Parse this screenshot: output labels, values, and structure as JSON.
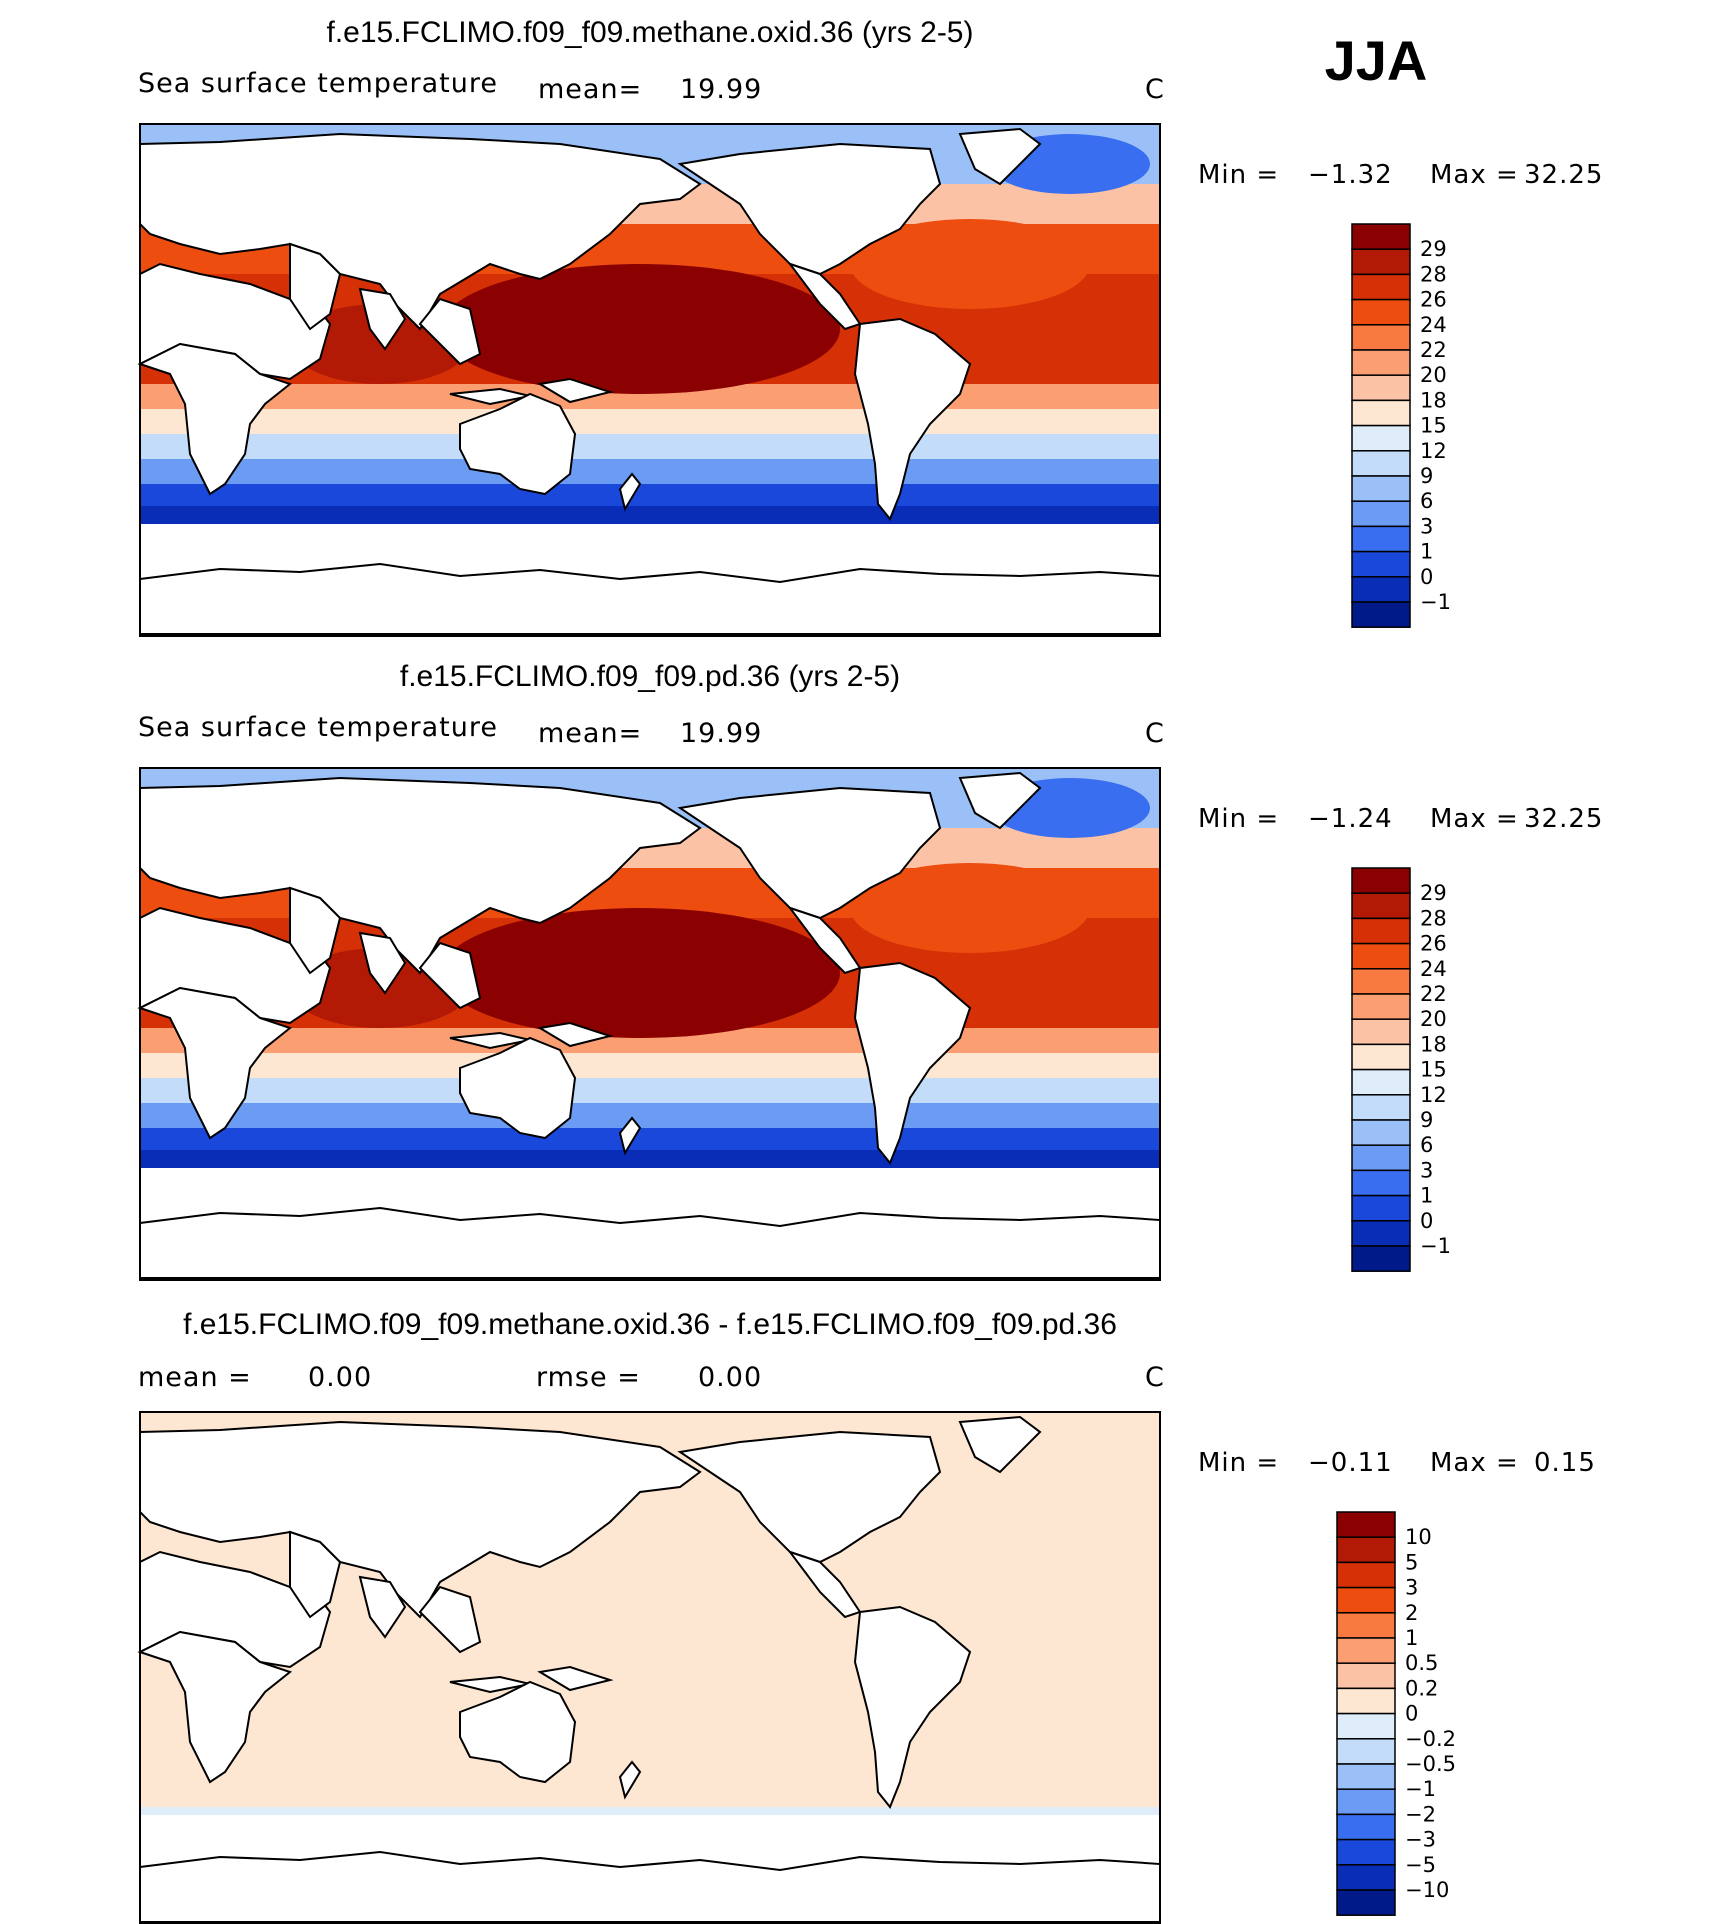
{
  "season": "JJA",
  "panels": [
    {
      "id": "methane",
      "title": "f.e15.FCLIMO.f09_f09.methane.oxid.36 (yrs 2-5)",
      "variable": "Sea surface temperature",
      "stat_label": "mean=",
      "stat_value": "19.99",
      "units": "C",
      "min_label": "Min =",
      "min_value": "−1.32",
      "max_label": "Max =",
      "max_value": "32.25",
      "colorbar": {
        "labels": [
          "29",
          "28",
          "26",
          "24",
          "22",
          "20",
          "18",
          "15",
          "12",
          "9",
          "6",
          "3",
          "1",
          "0",
          "−1"
        ],
        "colors": [
          "#8b0000",
          "#b21a05",
          "#d63006",
          "#ee4d10",
          "#f87a40",
          "#fb9f73",
          "#fcc2a5",
          "#fde6d2",
          "#dfedfa",
          "#c3dcf9",
          "#9bc0f7",
          "#6c9bf3",
          "#3a6ef0",
          "#1a48db",
          "#0a2db8",
          "#001a8a"
        ]
      }
    },
    {
      "id": "pd",
      "title": "f.e15.FCLIMO.f09_f09.pd.36 (yrs 2-5)",
      "variable": "Sea surface temperature",
      "stat_label": "mean=",
      "stat_value": "19.99",
      "units": "C",
      "min_label": "Min =",
      "min_value": "−1.24",
      "max_label": "Max =",
      "max_value": "32.25",
      "colorbar": {
        "labels": [
          "29",
          "28",
          "26",
          "24",
          "22",
          "20",
          "18",
          "15",
          "12",
          "9",
          "6",
          "3",
          "1",
          "0",
          "−1"
        ],
        "colors": [
          "#8b0000",
          "#b21a05",
          "#d63006",
          "#ee4d10",
          "#f87a40",
          "#fb9f73",
          "#fcc2a5",
          "#fde6d2",
          "#dfedfa",
          "#c3dcf9",
          "#9bc0f7",
          "#6c9bf3",
          "#3a6ef0",
          "#1a48db",
          "#0a2db8",
          "#001a8a"
        ]
      }
    },
    {
      "id": "diff",
      "title": "f.e15.FCLIMO.f09_f09.methane.oxid.36 - f.e15.FCLIMO.f09_f09.pd.36",
      "stat_label": "mean =",
      "stat_value": "0.00",
      "rmse_label": "rmse =",
      "rmse_value": "0.00",
      "units": "C",
      "min_label": "Min =",
      "min_value": "−0.11",
      "max_label": "Max =",
      "max_value": "0.15",
      "colorbar": {
        "labels": [
          "10",
          "5",
          "3",
          "2",
          "1",
          "0.5",
          "0.2",
          "0",
          "−0.2",
          "−0.5",
          "−1",
          "−2",
          "−3",
          "−5",
          "−10"
        ],
        "colors": [
          "#8b0000",
          "#b21a05",
          "#d63006",
          "#ee4d10",
          "#f87a40",
          "#fb9f73",
          "#fcc2a5",
          "#fde6d2",
          "#dfedfa",
          "#c3dcf9",
          "#9bc0f7",
          "#6c9bf3",
          "#3a6ef0",
          "#1a48db",
          "#0a2db8",
          "#001a8a"
        ]
      }
    }
  ]
}
